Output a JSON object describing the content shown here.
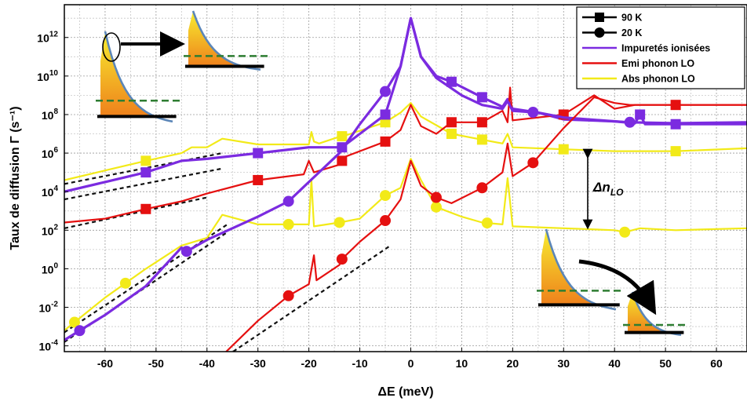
{
  "chart_data": {
    "type": "line",
    "xlabel": "ΔE (meV)",
    "ylabel": "Taux de diffusion  Γ (s⁻¹)",
    "xlim": [
      -68,
      66
    ],
    "ylim_log10": [
      -4.3,
      13.7
    ],
    "y_scale": "log",
    "grid": true,
    "x_ticks": [
      -60,
      -50,
      -40,
      -30,
      -20,
      -10,
      0,
      10,
      20,
      30,
      40,
      50,
      60
    ],
    "y_ticks": [
      {
        "exp": 12,
        "mant": "10",
        "sup": "12"
      },
      {
        "exp": 10,
        "mant": "10",
        "sup": "10"
      },
      {
        "exp": 8,
        "mant": "10",
        "sup": "8"
      },
      {
        "exp": 6,
        "mant": "10",
        "sup": "6"
      },
      {
        "exp": 4,
        "mant": "10",
        "sup": "4"
      },
      {
        "exp": 2,
        "mant": "10",
        "sup": "2"
      },
      {
        "exp": 0,
        "mant": "10",
        "sup": "0"
      },
      {
        "exp": -2,
        "mant": "10",
        "sup": "-2"
      },
      {
        "exp": -4,
        "mant": "10",
        "sup": "-4"
      }
    ],
    "legend_position": "top-right",
    "legend": [
      {
        "label": "90 K",
        "color": "#000000",
        "marker": "square"
      },
      {
        "label": "20 K",
        "color": "#000000",
        "marker": "circle"
      },
      {
        "label": "Impuretés ionisées",
        "color": "#7b2be0",
        "marker": "none"
      },
      {
        "label": "Emi phonon LO",
        "color": "#e51010",
        "marker": "none"
      },
      {
        "label": "Abs phonon LO",
        "color": "#f2ea18",
        "marker": "none"
      }
    ],
    "annotation": {
      "base": "Δn",
      "sub": "LO"
    },
    "series": [
      {
        "process": "Abs phonon LO",
        "temperature": "90 K",
        "color": "#f2ea18",
        "marker": "square",
        "x": [
          -68,
          -60,
          -52,
          -45,
          -43,
          -40,
          -37,
          -30,
          -20,
          -19.5,
          -19,
          -18,
          -14,
          -13,
          -5,
          -2,
          0,
          2,
          5,
          8,
          14,
          18,
          19,
          20,
          30,
          40,
          52,
          66
        ],
        "y_log10": [
          4.6,
          5.1,
          5.6,
          6.0,
          6.3,
          6.3,
          6.75,
          6.45,
          6.45,
          7.1,
          6.6,
          6.5,
          6.85,
          6.9,
          7.6,
          8.1,
          8.6,
          7.9,
          7.45,
          7.0,
          6.7,
          6.5,
          7.0,
          6.3,
          6.2,
          6.1,
          6.1,
          6.25
        ],
        "markers_x": [
          -52,
          -13.5,
          -5,
          8,
          14,
          30,
          52
        ]
      },
      {
        "process": "Impuretés ionisées",
        "temperature": "90 K",
        "color": "#7b2be0",
        "marker": "square",
        "x": [
          -68,
          -60,
          -52,
          -45,
          -40,
          -30,
          -20,
          -13.5,
          -10,
          -5,
          -2,
          0,
          2,
          5,
          8,
          14,
          18,
          19,
          20,
          25,
          30,
          40,
          44,
          45,
          46,
          52,
          66
        ],
        "y_log10": [
          4.0,
          4.5,
          5.0,
          5.6,
          5.7,
          6.0,
          6.3,
          6.3,
          7.0,
          8.0,
          10.5,
          13.0,
          11.0,
          10.0,
          9.7,
          8.9,
          8.4,
          8.8,
          8.3,
          8.1,
          7.75,
          7.65,
          7.55,
          8.0,
          7.5,
          7.5,
          7.5
        ],
        "markers_x": [
          -52,
          -30,
          -13.5,
          -5,
          8,
          14,
          45,
          52
        ]
      },
      {
        "process": "Emi phonon LO",
        "temperature": "90 K",
        "color": "#e51010",
        "marker": "square",
        "x": [
          -68,
          -60,
          -52,
          -45,
          -40,
          -30,
          -21,
          -20,
          -19,
          -14,
          -13,
          -5,
          -2,
          0,
          2,
          5,
          8,
          14,
          18,
          19,
          19.5,
          20,
          30,
          36,
          40,
          44,
          52,
          66
        ],
        "y_log10": [
          2.4,
          2.6,
          3.1,
          3.5,
          3.9,
          4.6,
          4.9,
          5.6,
          5.0,
          5.4,
          5.8,
          6.6,
          7.2,
          8.5,
          7.4,
          7.0,
          7.6,
          7.6,
          8.2,
          7.6,
          9.4,
          7.7,
          8.0,
          9.0,
          8.3,
          8.5,
          8.5,
          8.5
        ],
        "markers_x": [
          -52,
          -30,
          -13.5,
          -5,
          8,
          14,
          30,
          52
        ]
      },
      {
        "process": "Abs phonon LO",
        "temperature": "20 K",
        "color": "#f2ea18",
        "marker": "circle",
        "x": [
          -68,
          -60,
          -52,
          -45,
          -40,
          -37,
          -30,
          -24,
          -20,
          -19.5,
          -19,
          -14,
          -10,
          -5,
          -2,
          0,
          2,
          5,
          10,
          14,
          18,
          19,
          20,
          30,
          40,
          42,
          45,
          52,
          66
        ],
        "y_log10": [
          -3.2,
          -1.5,
          0.0,
          1.2,
          1.6,
          2.8,
          2.3,
          2.3,
          2.3,
          4.6,
          2.2,
          2.4,
          2.6,
          3.8,
          4.2,
          5.7,
          4.6,
          3.2,
          2.7,
          2.4,
          2.3,
          4.7,
          2.2,
          2.1,
          2.0,
          1.9,
          2.1,
          2.0,
          2.1
        ],
        "markers_x": [
          -66,
          -56,
          -24,
          -14,
          -5,
          5,
          15,
          42
        ]
      },
      {
        "process": "Impuretés ionisées",
        "temperature": "20 K",
        "color": "#7b2be0",
        "marker": "circle",
        "x": [
          -68,
          -60,
          -52,
          -45,
          -44,
          -40,
          -30,
          -24,
          -20,
          -14,
          -10,
          -5,
          -2,
          0,
          2,
          5,
          10,
          14,
          18,
          19,
          20,
          25,
          30,
          40,
          43,
          52,
          66
        ],
        "y_log10": [
          -3.7,
          -2.4,
          -0.9,
          1.1,
          0.9,
          1.5,
          2.7,
          3.5,
          4.5,
          6.0,
          7.5,
          9.2,
          10.5,
          13.0,
          11.0,
          9.9,
          9.0,
          8.5,
          8.3,
          8.7,
          8.2,
          8.1,
          7.85,
          7.65,
          7.6,
          7.55,
          7.6
        ],
        "markers_x": [
          -65,
          -44,
          -24,
          -5,
          24,
          43
        ]
      },
      {
        "process": "Emi phonon LO",
        "temperature": "20 K",
        "color": "#e51010",
        "marker": "circle",
        "x": [
          -37,
          -30,
          -24,
          -20,
          -19,
          -18.5,
          -14,
          -13.5,
          -10,
          -5,
          -2,
          0,
          2,
          5,
          8,
          14,
          18,
          19,
          20,
          24,
          30,
          36,
          40,
          43,
          52,
          66
        ],
        "y_log10": [
          -4.5,
          -2.7,
          -1.4,
          -0.8,
          0.7,
          -0.6,
          0.2,
          0.5,
          1.4,
          2.5,
          3.6,
          5.6,
          4.3,
          3.7,
          3.4,
          4.2,
          5.0,
          6.5,
          4.8,
          5.5,
          7.3,
          8.9,
          8.6,
          8.5,
          8.5,
          8.5
        ],
        "markers_x": [
          -24,
          -13.5,
          -5,
          5,
          14,
          24
        ]
      }
    ],
    "asymptotes": [
      {
        "x": [
          -68,
          -37
        ],
        "y_log10": [
          4.4,
          6.0
        ]
      },
      {
        "x": [
          -68,
          -37
        ],
        "y_log10": [
          3.6,
          5.2
        ]
      },
      {
        "x": [
          -68,
          -40
        ],
        "y_log10": [
          2.1,
          3.7
        ]
      },
      {
        "x": [
          -68,
          -36
        ],
        "y_log10": [
          -3.3,
          2.3
        ]
      },
      {
        "x": [
          -68,
          -36
        ],
        "y_log10": [
          -3.8,
          1.9
        ]
      },
      {
        "x": [
          -36,
          -4
        ],
        "y_log10": [
          -4.5,
          1.2
        ]
      }
    ]
  }
}
